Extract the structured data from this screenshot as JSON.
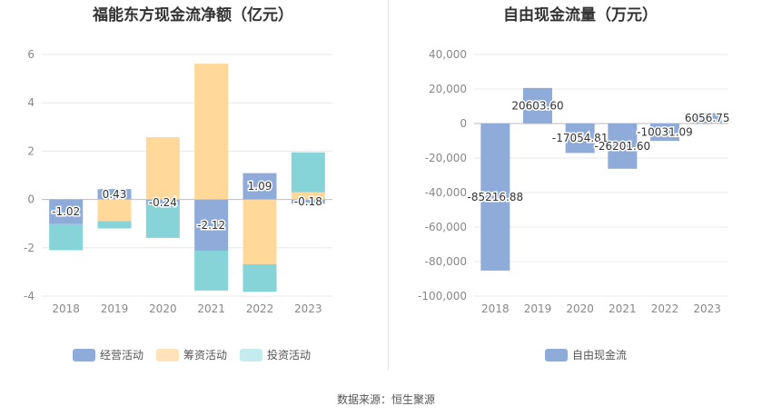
{
  "chart_data": [
    {
      "type": "bar",
      "title": "福能东方现金流净额（亿元）",
      "stacked": true,
      "categories": [
        "2018",
        "2019",
        "2020",
        "2021",
        "2022",
        "2023"
      ],
      "series": [
        {
          "name": "经营活动",
          "color": "#8eabd9",
          "values": [
            -1.02,
            0.43,
            -0.24,
            -2.12,
            1.09,
            -0.18
          ],
          "labels": [
            "-1.02",
            "0.43",
            "-0.24",
            "-2.12",
            "1.09",
            "-0.18"
          ]
        },
        {
          "name": "筹资活动",
          "color": "#ffd89a",
          "values": [
            0.0,
            -0.9,
            2.58,
            5.62,
            -2.68,
            0.3
          ]
        },
        {
          "name": "投资活动",
          "color": "#86d4d8",
          "values": [
            -1.08,
            -0.3,
            -1.35,
            -1.65,
            -1.14,
            1.65
          ]
        }
      ],
      "ylim": [
        -4,
        6
      ],
      "yticks": [
        "6",
        "4",
        "2",
        "0",
        "-2",
        "-4"
      ],
      "legend_position": "bottom",
      "grid": true
    },
    {
      "type": "waterfall",
      "title": "自由现金流量（万元）",
      "categories": [
        "2018",
        "2019",
        "2020",
        "2021",
        "2022",
        "2023"
      ],
      "series": [
        {
          "name": "自由现金流",
          "color": "#8eabd9",
          "values": [
            -85216.88,
            20603.6,
            -17054.81,
            -26201.6,
            -10031.09,
            6056.75
          ],
          "labels": [
            "-85216.88",
            "20603.60",
            "-17054.81",
            "-26201.60",
            "-10031.09",
            "6056.75"
          ]
        }
      ],
      "ylim": [
        -100000,
        40000
      ],
      "yticks": [
        "40,000",
        "20,000",
        "0",
        "-20,000",
        "-40,000",
        "-60,000",
        "-80,000",
        "-100,000"
      ],
      "legend_position": "bottom",
      "grid": true
    }
  ],
  "source": "数据来源：恒生聚源"
}
